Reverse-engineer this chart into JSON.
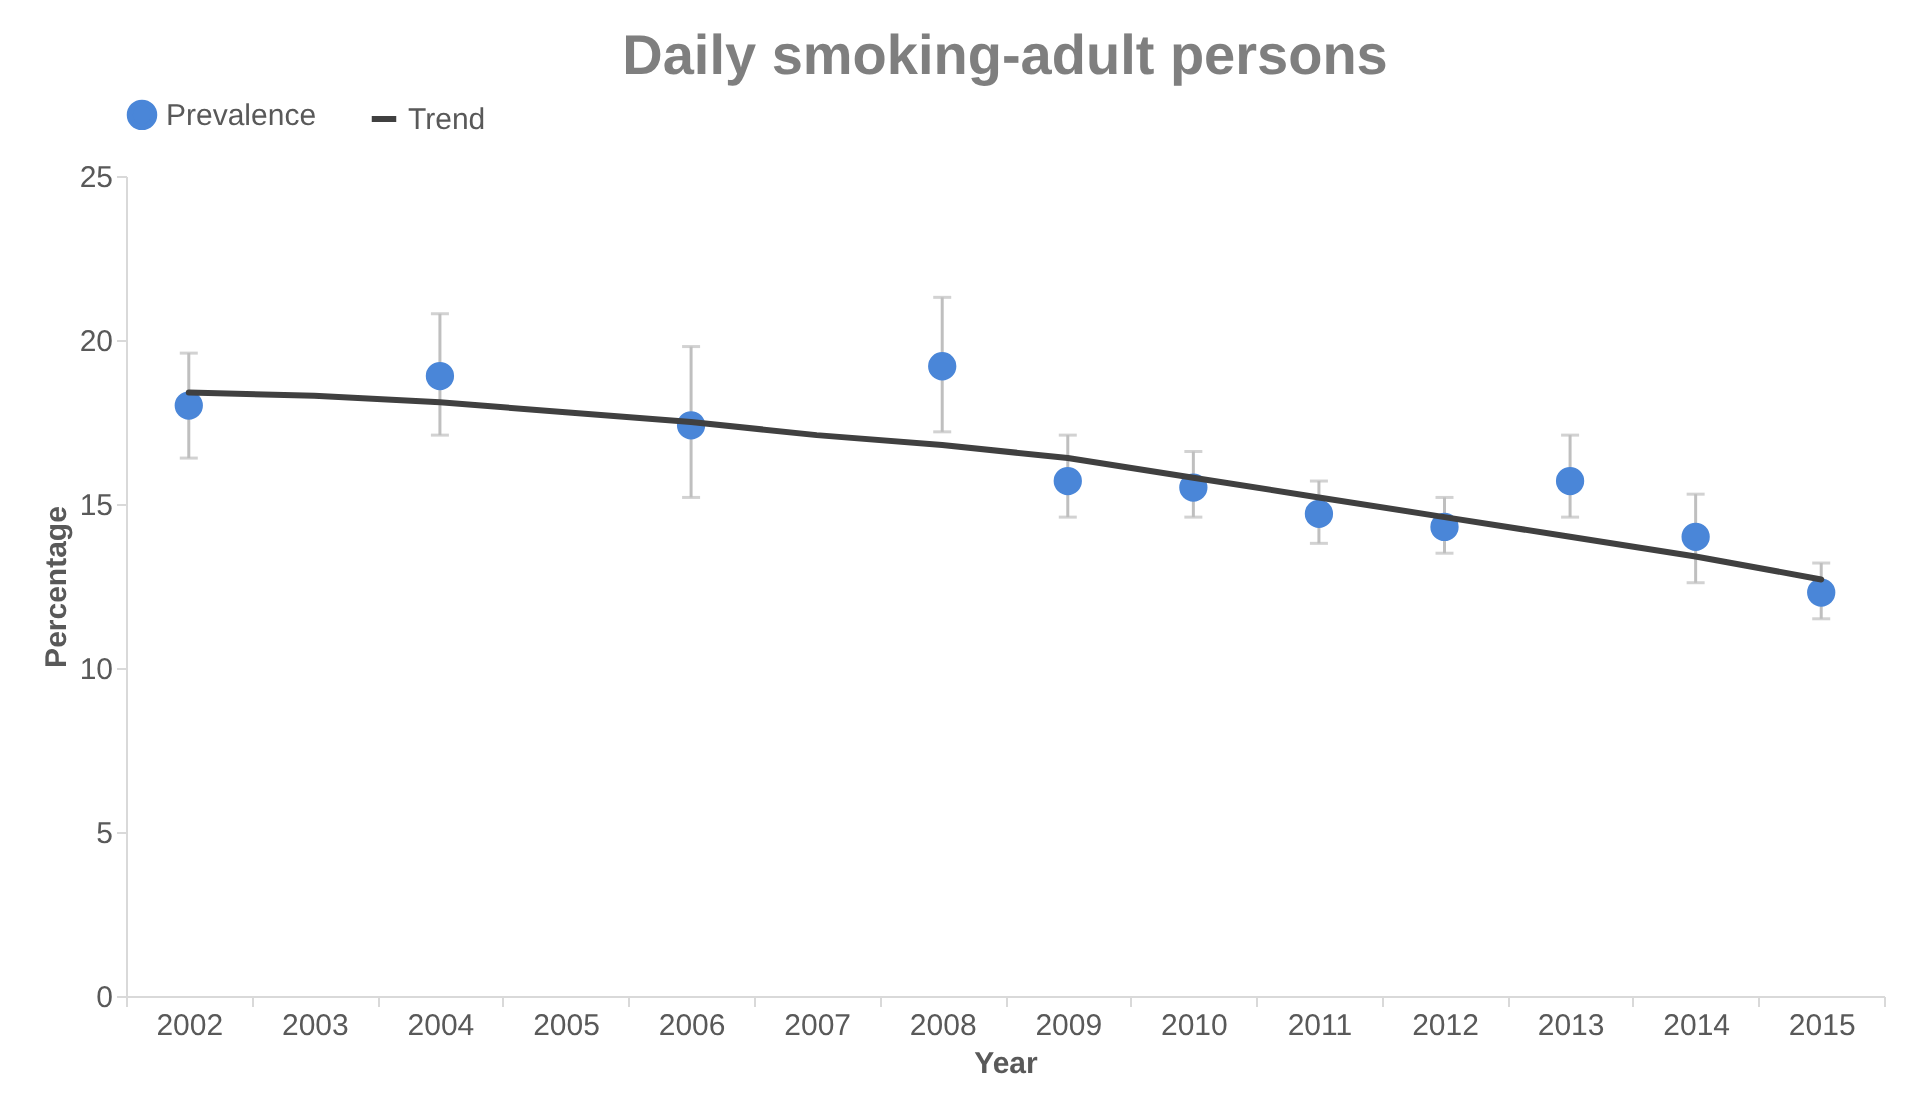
{
  "chart_data": {
    "type": "scatter",
    "title": "Daily smoking-adult persons",
    "xlabel": "Year",
    "ylabel": "Percentage",
    "categories": [
      "2002",
      "2003",
      "2004",
      "2005",
      "2006",
      "2007",
      "2008",
      "2009",
      "2010",
      "2011",
      "2012",
      "2013",
      "2014",
      "2015"
    ],
    "series": [
      {
        "name": "Prevalence",
        "color": "#4a86d8",
        "marker": "circle",
        "values": [
          18.0,
          null,
          18.9,
          null,
          17.4,
          null,
          19.2,
          15.7,
          15.5,
          14.7,
          14.3,
          15.7,
          14.0,
          12.3
        ],
        "errors": [
          [
            16.4,
            19.6
          ],
          null,
          [
            17.1,
            20.8
          ],
          null,
          [
            15.2,
            19.8
          ],
          null,
          [
            17.2,
            21.3
          ],
          [
            14.6,
            17.1
          ],
          [
            14.6,
            16.6
          ],
          [
            13.8,
            15.7
          ],
          [
            13.5,
            15.2
          ],
          [
            14.6,
            17.1
          ],
          [
            12.6,
            15.3
          ],
          [
            11.5,
            13.2
          ]
        ]
      },
      {
        "name": "Trend",
        "type": "line",
        "color": "#404040",
        "line_style": "solid",
        "values": [
          18.4,
          18.3,
          18.1,
          17.8,
          17.5,
          17.1,
          16.8,
          16.4,
          15.8,
          15.2,
          14.6,
          14.0,
          13.4,
          12.7
        ]
      }
    ],
    "ylim": [
      0,
      25
    ],
    "yticks": [
      0,
      5,
      10,
      15,
      20,
      25
    ],
    "grid": false,
    "legend": "top"
  }
}
